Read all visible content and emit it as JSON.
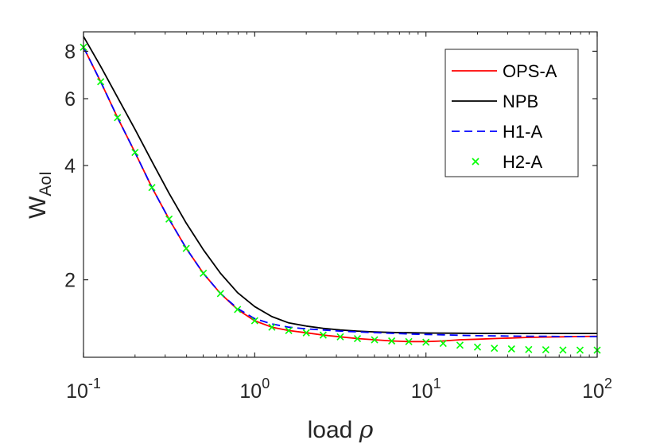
{
  "chart_data": {
    "type": "line",
    "xlabel": {
      "main": "load ",
      "symbol": "ρ"
    },
    "ylabel": {
      "main": "W",
      "subscript": "AoI"
    },
    "x_scale": "log",
    "y_scale": "log",
    "xlim": [
      0.1,
      100
    ],
    "ylim": [
      1.25,
      9
    ],
    "x_ticks": [
      {
        "value": 0.1,
        "base": "10",
        "exp": "-1"
      },
      {
        "value": 1,
        "base": "10",
        "exp": "0"
      },
      {
        "value": 10,
        "base": "10",
        "exp": "1"
      },
      {
        "value": 100,
        "base": "10",
        "exp": "2"
      }
    ],
    "y_ticks": [
      {
        "value": 2,
        "label": "2"
      },
      {
        "value": 4,
        "label": "4"
      },
      {
        "value": 6,
        "label": "6"
      },
      {
        "value": 8,
        "label": "8"
      }
    ],
    "grid": false,
    "legend_position": "top-right",
    "series": [
      {
        "name": "OPS-A",
        "style": "solid",
        "color": "#ff0000",
        "x": [
          0.1,
          0.126,
          0.158,
          0.2,
          0.251,
          0.316,
          0.398,
          0.501,
          0.631,
          0.794,
          1,
          1.26,
          1.58,
          2,
          2.51,
          3.16,
          3.98,
          5.01,
          6.31,
          7.94,
          10,
          12.6,
          15.8,
          20,
          25.1,
          31.6,
          39.8,
          50.1,
          63.1,
          79.4,
          100
        ],
        "y": [
          8.2,
          6.65,
          5.35,
          4.33,
          3.5,
          2.89,
          2.42,
          2.08,
          1.84,
          1.67,
          1.56,
          1.5,
          1.47,
          1.45,
          1.43,
          1.415,
          1.4,
          1.39,
          1.38,
          1.375,
          1.375,
          1.38,
          1.39,
          1.395,
          1.4,
          1.405,
          1.41,
          1.413,
          1.415,
          1.418,
          1.42
        ]
      },
      {
        "name": "NPB",
        "style": "solid",
        "color": "#000000",
        "x": [
          0.1,
          0.126,
          0.158,
          0.2,
          0.251,
          0.316,
          0.398,
          0.501,
          0.631,
          0.794,
          1,
          1.26,
          1.58,
          2,
          2.51,
          3.16,
          3.98,
          5.01,
          6.31,
          7.94,
          10,
          12.6,
          15.8,
          20,
          25.1,
          31.6,
          39.8,
          50.1,
          63.1,
          79.4,
          100
        ],
        "y": [
          8.75,
          7.3,
          6.05,
          4.98,
          4.1,
          3.38,
          2.82,
          2.4,
          2.08,
          1.85,
          1.7,
          1.6,
          1.54,
          1.51,
          1.49,
          1.475,
          1.465,
          1.458,
          1.453,
          1.45,
          1.448,
          1.447,
          1.446,
          1.445,
          1.445,
          1.444,
          1.444,
          1.444,
          1.444,
          1.444,
          1.444
        ]
      },
      {
        "name": "H1-A",
        "style": "dashed",
        "color": "#0000ff",
        "x": [
          0.1,
          0.126,
          0.158,
          0.2,
          0.251,
          0.316,
          0.398,
          0.501,
          0.631,
          0.794,
          1,
          1.26,
          1.58,
          2,
          2.51,
          3.16,
          3.98,
          5.01,
          6.31,
          7.94,
          10,
          12.6,
          15.8,
          20,
          25.1,
          31.6,
          39.8,
          50.1,
          63.1,
          79.4,
          100
        ],
        "y": [
          8.2,
          6.65,
          5.35,
          4.33,
          3.5,
          2.89,
          2.42,
          2.08,
          1.84,
          1.68,
          1.58,
          1.53,
          1.5,
          1.485,
          1.475,
          1.465,
          1.458,
          1.452,
          1.446,
          1.44,
          1.436,
          1.432,
          1.428,
          1.425,
          1.423,
          1.421,
          1.42,
          1.419,
          1.418,
          1.417,
          1.417
        ]
      },
      {
        "name": "H2-A",
        "style": "markers",
        "marker": "x",
        "color": "#00ff00",
        "x": [
          0.1,
          0.126,
          0.158,
          0.2,
          0.251,
          0.316,
          0.398,
          0.501,
          0.631,
          0.794,
          1,
          1.26,
          1.58,
          2,
          2.51,
          3.16,
          3.98,
          5.01,
          6.31,
          7.94,
          10,
          12.6,
          15.8,
          20,
          25.1,
          31.6,
          39.8,
          50.1,
          63.1,
          79.4,
          100
        ],
        "y": [
          8.2,
          6.65,
          5.35,
          4.33,
          3.5,
          2.89,
          2.42,
          2.08,
          1.84,
          1.67,
          1.56,
          1.5,
          1.47,
          1.45,
          1.43,
          1.415,
          1.4,
          1.39,
          1.38,
          1.375,
          1.37,
          1.36,
          1.345,
          1.33,
          1.32,
          1.315,
          1.31,
          1.308,
          1.306,
          1.305,
          1.305
        ]
      }
    ]
  }
}
